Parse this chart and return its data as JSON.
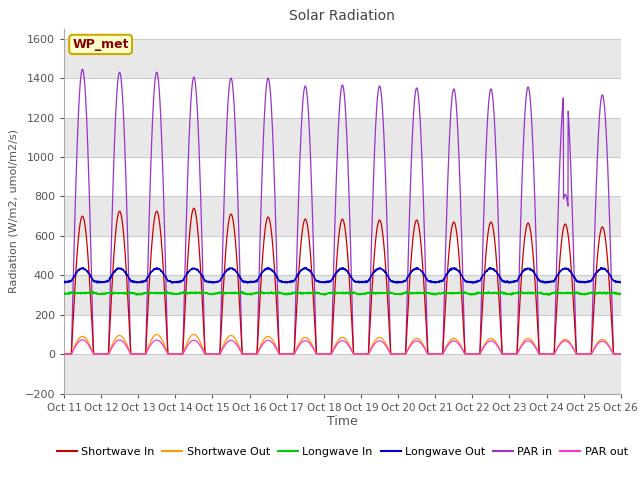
{
  "title": "Solar Radiation",
  "xlabel": "Time",
  "ylabel": "Radiation (W/m2, umol/m2/s)",
  "ylim": [
    -200,
    1650
  ],
  "yticks": [
    -200,
    0,
    200,
    400,
    600,
    800,
    1000,
    1200,
    1400,
    1600
  ],
  "num_days": 15,
  "xtick_labels": [
    "Oct 11",
    "Oct 12",
    "Oct 13",
    "Oct 14",
    "Oct 15",
    "Oct 16",
    "Oct 17",
    "Oct 18",
    "Oct 19",
    "Oct 20",
    "Oct 21",
    "Oct 22",
    "Oct 23",
    "Oct 24",
    "Oct 25",
    "Oct 26"
  ],
  "annotation_label": "WP_met",
  "annotation_bg": "#ffffcc",
  "annotation_border": "#ccaa00",
  "annotation_text_color": "#880000",
  "fig_bg": "#ffffff",
  "plot_bg": "#ffffff",
  "band_color": "#e8e8e8",
  "sw_in_peaks": [
    700,
    725,
    725,
    740,
    710,
    695,
    685,
    685,
    680,
    680,
    670,
    670,
    665,
    660,
    645
  ],
  "sw_out_peaks": [
    90,
    95,
    100,
    100,
    95,
    90,
    85,
    85,
    85,
    80,
    80,
    80,
    80,
    75,
    75
  ],
  "par_in_peaks": [
    1445,
    1430,
    1430,
    1405,
    1400,
    1400,
    1360,
    1365,
    1360,
    1350,
    1345,
    1345,
    1355,
    1350,
    1315
  ],
  "lw_in_base": 315,
  "lw_out_base": 375,
  "pts_per_day": 144,
  "color_sw_in": "#cc0000",
  "color_sw_out": "#ff9900",
  "color_lw_in": "#00cc00",
  "color_lw_out": "#0000cc",
  "color_par_in": "#9933cc",
  "color_par_out": "#ff33cc"
}
